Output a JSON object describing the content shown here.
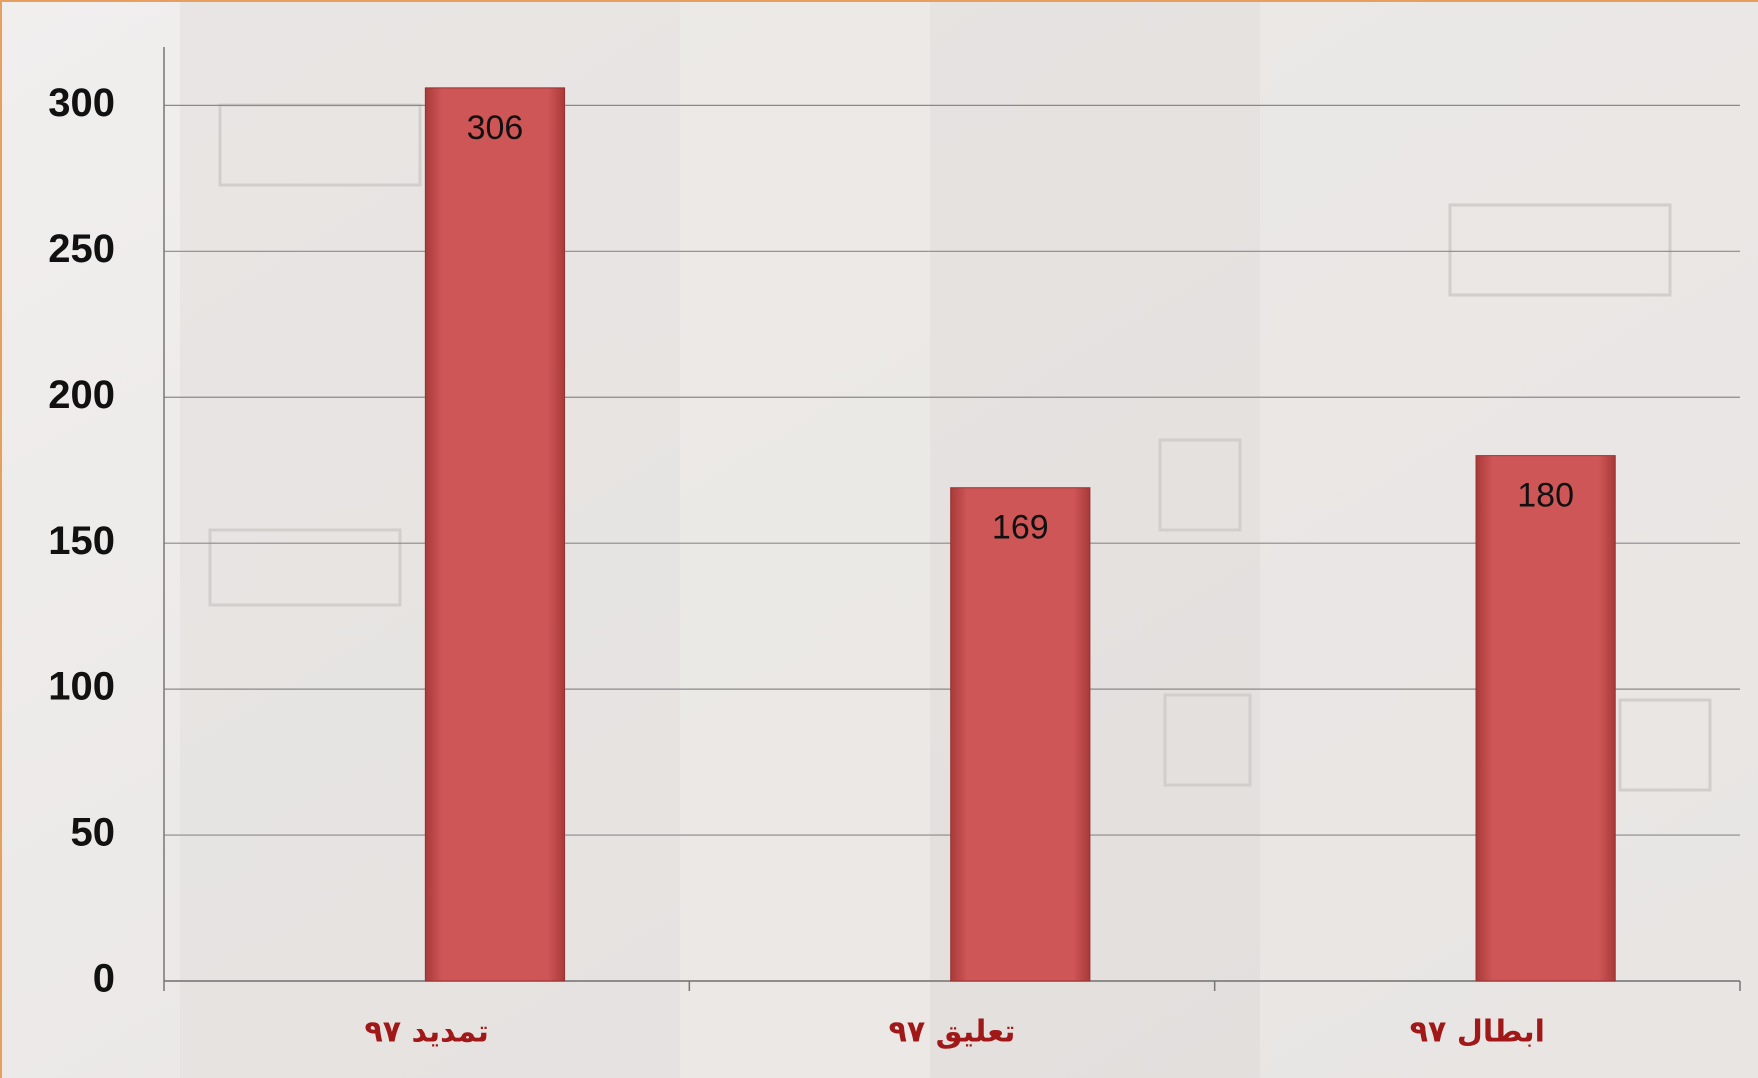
{
  "chart_data": {
    "type": "bar",
    "categories": [
      "تمدید ۹۷",
      "تعلیق ۹۷",
      "ابطال ۹۷"
    ],
    "values": [
      306,
      169,
      180
    ],
    "color": "#cd5454",
    "ylim": [
      0,
      320
    ],
    "yticks": [
      0,
      50,
      100,
      150,
      200,
      250,
      300
    ],
    "grid": true
  }
}
